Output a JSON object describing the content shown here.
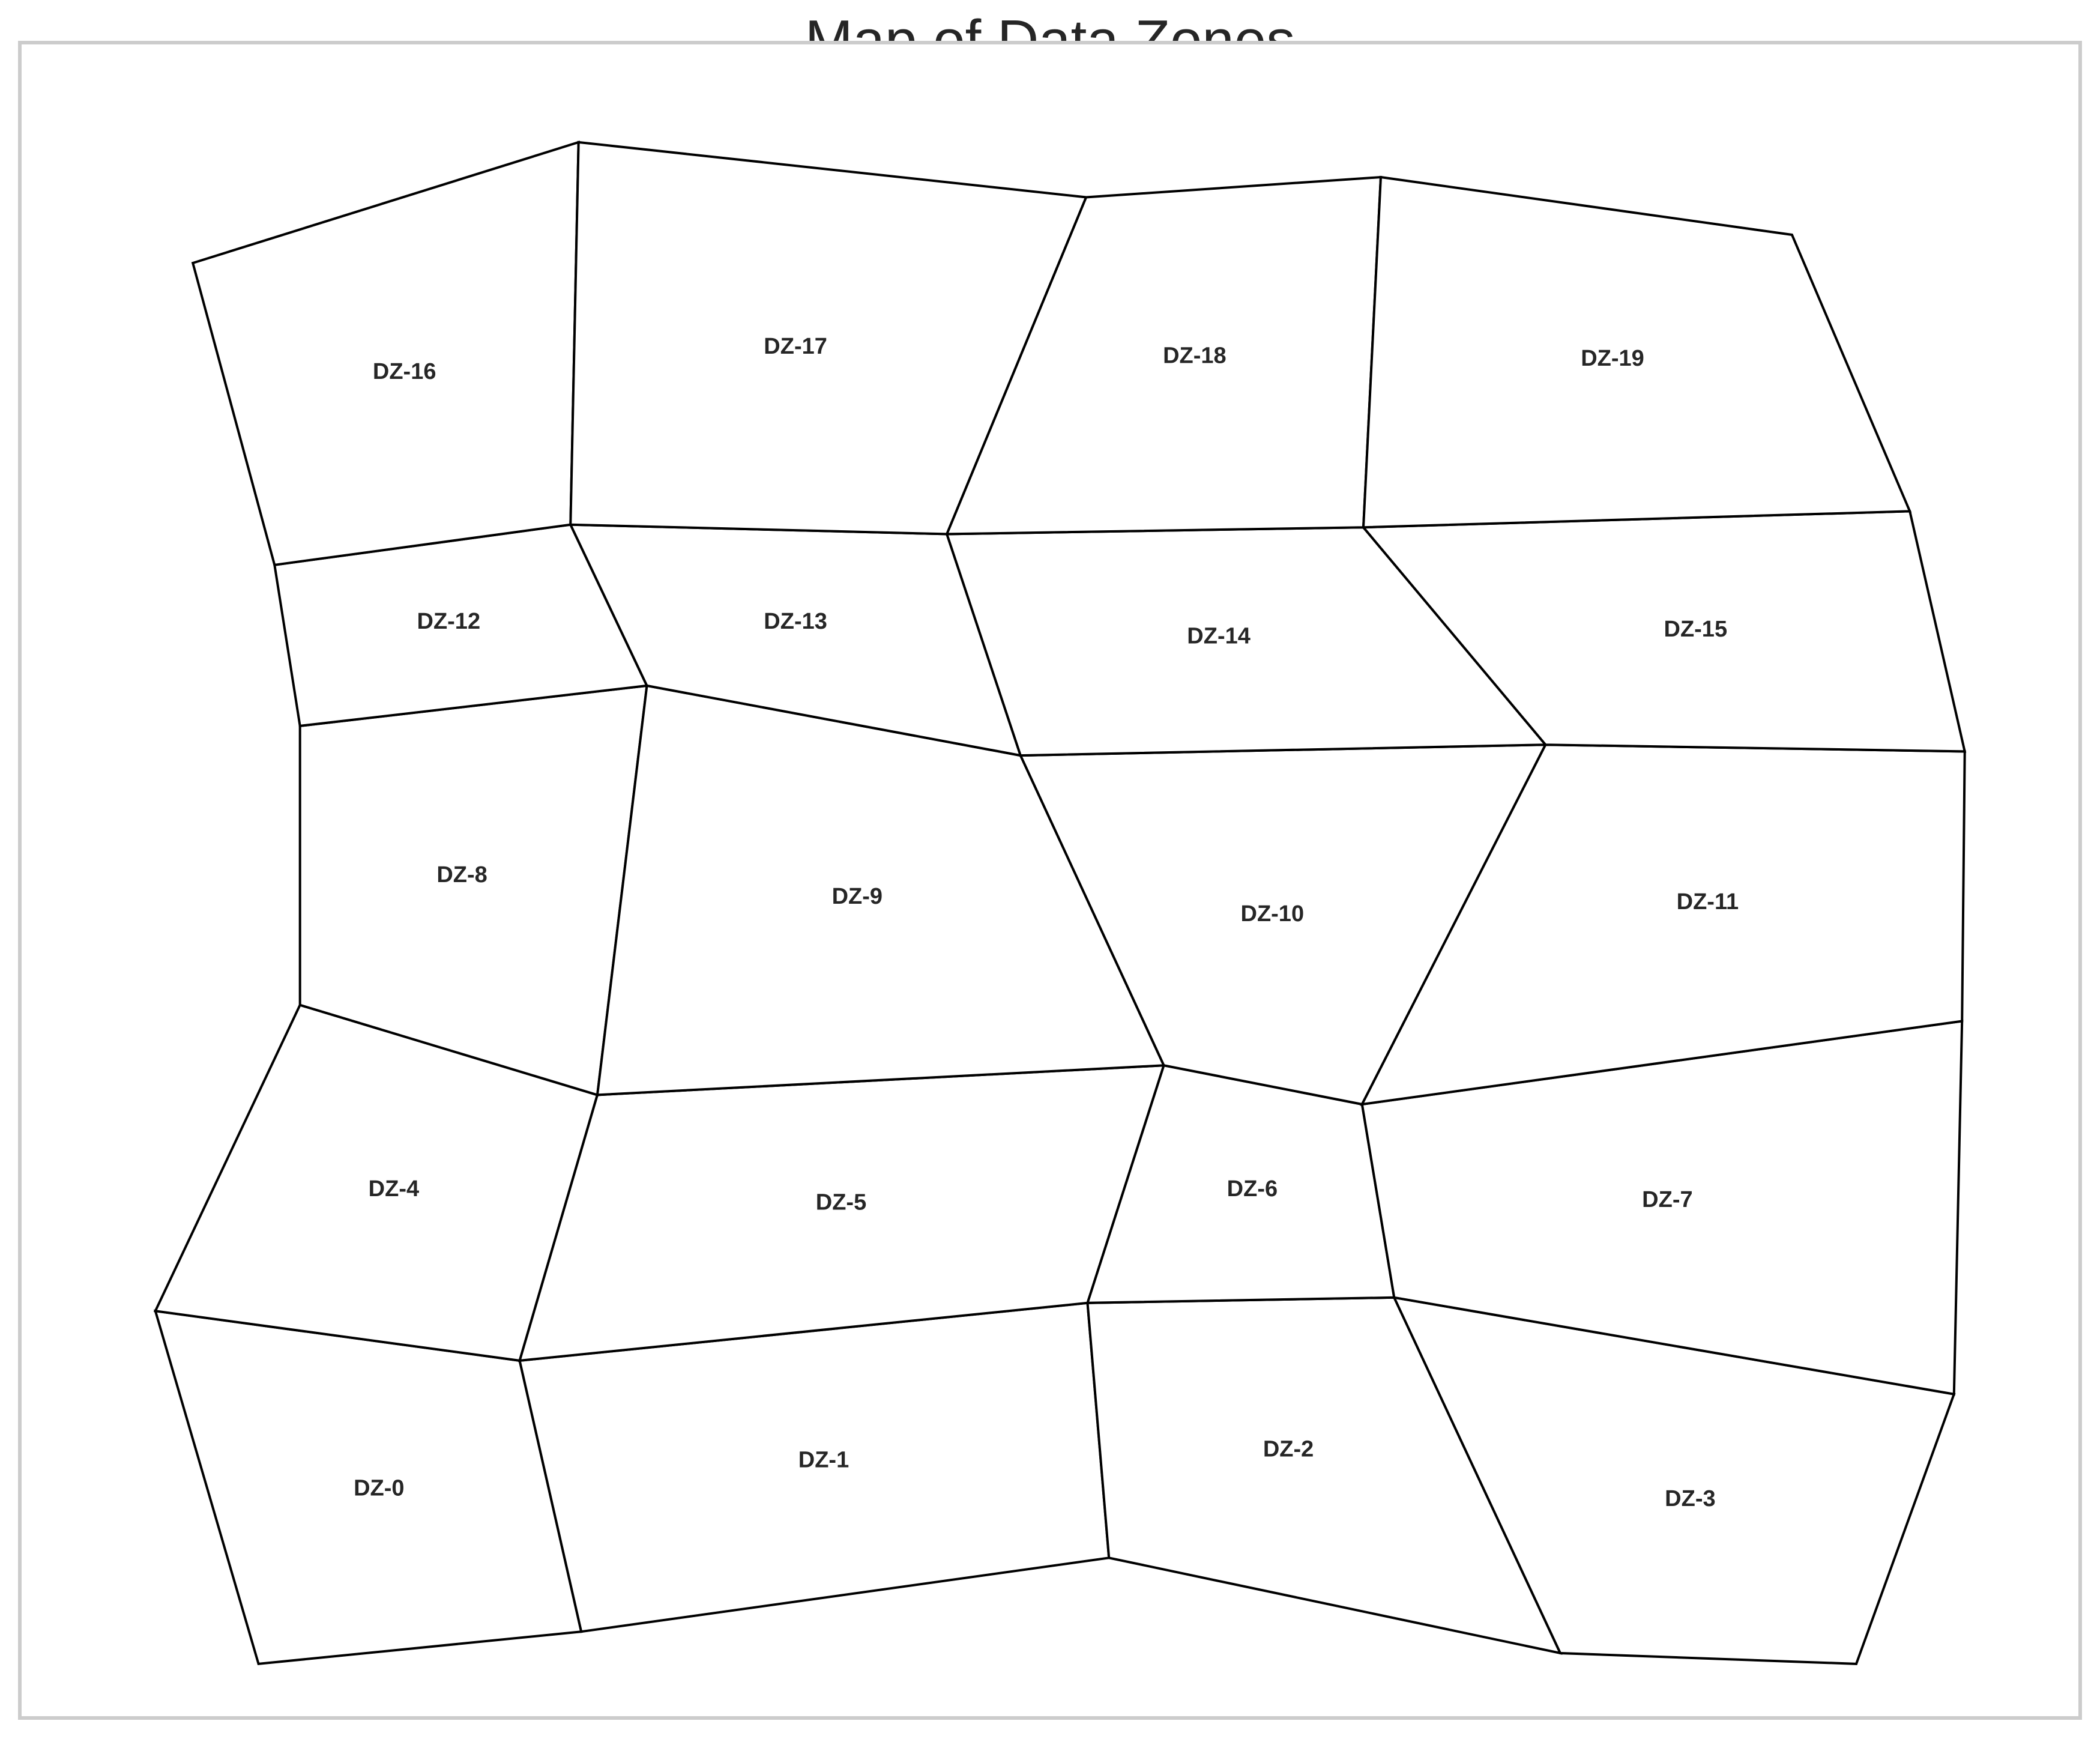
{
  "title": "Map of Data Zones",
  "colors": {
    "border": "#000000",
    "fill": "#ffffff",
    "frame": "#cccccc",
    "text": "#262626"
  },
  "zones": [
    {
      "label": "DZ-0"
    },
    {
      "label": "DZ-1"
    },
    {
      "label": "DZ-2"
    },
    {
      "label": "DZ-3"
    },
    {
      "label": "DZ-4"
    },
    {
      "label": "DZ-5"
    },
    {
      "label": "DZ-6"
    },
    {
      "label": "DZ-7"
    },
    {
      "label": "DZ-8"
    },
    {
      "label": "DZ-9"
    },
    {
      "label": "DZ-10"
    },
    {
      "label": "DZ-11"
    },
    {
      "label": "DZ-12"
    },
    {
      "label": "DZ-13"
    },
    {
      "label": "DZ-14"
    },
    {
      "label": "DZ-15"
    },
    {
      "label": "DZ-16"
    },
    {
      "label": "DZ-17"
    },
    {
      "label": "DZ-18"
    },
    {
      "label": "DZ-19"
    }
  ]
}
